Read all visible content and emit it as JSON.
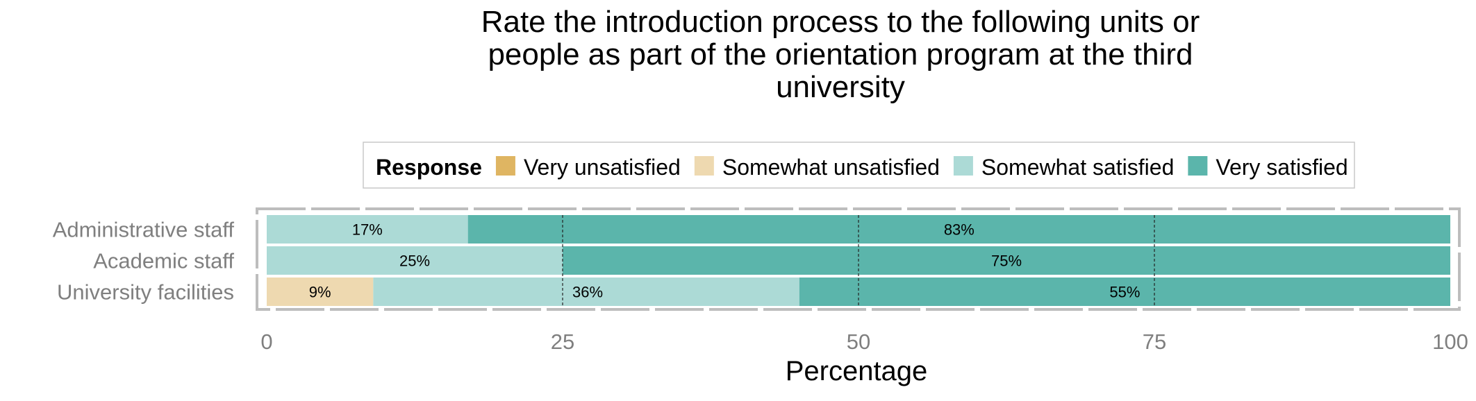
{
  "chart_data": {
    "type": "bar",
    "orientation": "horizontal",
    "stacked": true,
    "title_lines": [
      "Rate the introduction process to the following units or",
      "people as part of the orientation program at the third",
      "university"
    ],
    "xlabel": "Percentage",
    "ylabel": "",
    "xlim": [
      0,
      100
    ],
    "x_ticks": [
      "0",
      "25",
      "50",
      "75",
      "100"
    ],
    "grid": "vertical dashed at major ticks",
    "legend": {
      "title": "Response",
      "placement": "top",
      "entries": [
        {
          "name": "Very unsatisfied",
          "color": "#dfb562"
        },
        {
          "name": "Somewhat unsatisfied",
          "color": "#eed9b0"
        },
        {
          "name": "Somewhat satisfied",
          "color": "#acdad6"
        },
        {
          "name": "Very satisfied",
          "color": "#5bb5ab"
        }
      ]
    },
    "categories": [
      "Administrative staff",
      "Academic staff",
      "University facilities"
    ],
    "series": [
      {
        "name": "Very unsatisfied",
        "values": [
          0,
          0,
          0
        ],
        "labels": [
          "",
          "",
          ""
        ]
      },
      {
        "name": "Somewhat unsatisfied",
        "values": [
          0,
          0,
          9
        ],
        "labels": [
          "",
          "",
          "9%"
        ]
      },
      {
        "name": "Somewhat satisfied",
        "values": [
          17,
          25,
          36
        ],
        "labels": [
          "17%",
          "25%",
          "36%"
        ]
      },
      {
        "name": "Very satisfied",
        "values": [
          83,
          75,
          55
        ],
        "labels": [
          "83%",
          "75%",
          "55%"
        ]
      }
    ]
  }
}
